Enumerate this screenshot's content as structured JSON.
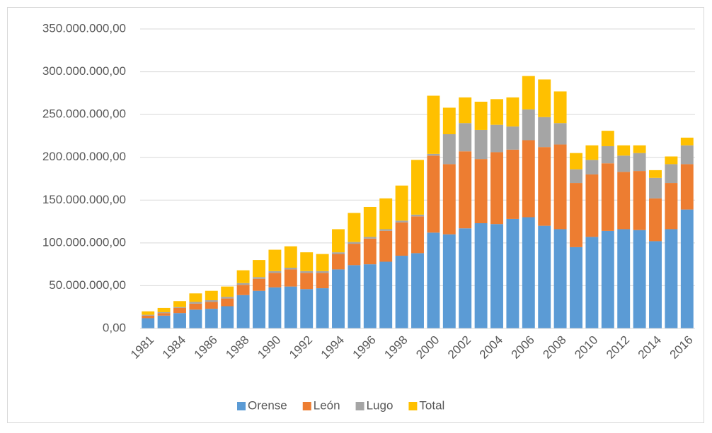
{
  "chart_data": {
    "type": "stacked_bar",
    "categories": [
      "1981",
      null,
      "1984",
      null,
      "1986",
      null,
      "1988",
      null,
      "1990",
      null,
      "1992",
      null,
      "1994",
      null,
      "1996",
      null,
      "1998",
      null,
      "2000",
      null,
      "2002",
      null,
      "2004",
      null,
      "2006",
      null,
      "2008",
      null,
      "2010",
      null,
      "2012",
      null,
      "2014",
      null,
      "2016"
    ],
    "series": [
      {
        "name": "Orense",
        "color": "#5b9bd5",
        "values": [
          12000000,
          15000000,
          18000000,
          22000000,
          23000000,
          26000000,
          39000000,
          44000000,
          48000000,
          49000000,
          46000000,
          47000000,
          69000000,
          74000000,
          75000000,
          78000000,
          85000000,
          88000000,
          112000000,
          110000000,
          117000000,
          123000000,
          122000000,
          128000000,
          130000000,
          120000000,
          116000000,
          95000000,
          107000000,
          114000000,
          116000000,
          115000000,
          102000000,
          116000000,
          139000000
        ]
      },
      {
        "name": "León",
        "color": "#ed7d31",
        "values": [
          3000000,
          3000000,
          6000000,
          7000000,
          8000000,
          9000000,
          12000000,
          14000000,
          17000000,
          20000000,
          19000000,
          18000000,
          18000000,
          25000000,
          30000000,
          36000000,
          39000000,
          43000000,
          90000000,
          82000000,
          90000000,
          75000000,
          84000000,
          81000000,
          90000000,
          92000000,
          99000000,
          75000000,
          73000000,
          79000000,
          67000000,
          69000000,
          50000000,
          54000000,
          53000000
        ]
      },
      {
        "name": "Lugo",
        "color": "#a5a5a5",
        "values": [
          1000000,
          1000000,
          1000000,
          2000000,
          2000000,
          2000000,
          2000000,
          2000000,
          2000000,
          2000000,
          2000000,
          2000000,
          2000000,
          2000000,
          2000000,
          2000000,
          2000000,
          2000000,
          2000000,
          35000000,
          33000000,
          34000000,
          32000000,
          27000000,
          36000000,
          35000000,
          25000000,
          16000000,
          17000000,
          20000000,
          19000000,
          21000000,
          24000000,
          22000000,
          22000000
        ]
      },
      {
        "name": "Total",
        "color": "#ffc000",
        "values": [
          4000000,
          5000000,
          7000000,
          10000000,
          11000000,
          12000000,
          15000000,
          20000000,
          25000000,
          25000000,
          22000000,
          20000000,
          27000000,
          34000000,
          35000000,
          36000000,
          41000000,
          64000000,
          68000000,
          31000000,
          30000000,
          33000000,
          30000000,
          34000000,
          39000000,
          44000000,
          37000000,
          19000000,
          17000000,
          18000000,
          12000000,
          9000000,
          9000000,
          9000000,
          9000000
        ]
      }
    ],
    "ylim": [
      0,
      350000000
    ],
    "yticks": [
      {
        "value": 0,
        "label": "0,00"
      },
      {
        "value": 50000000,
        "label": "50.000.000,00"
      },
      {
        "value": 100000000,
        "label": "100.000.000,00"
      },
      {
        "value": 150000000,
        "label": "150.000.000,00"
      },
      {
        "value": 200000000,
        "label": "200.000.000,00"
      },
      {
        "value": 250000000,
        "label": "250.000.000,00"
      },
      {
        "value": 300000000,
        "label": "300.000.000,00"
      },
      {
        "value": 350000000,
        "label": "350.000.000,00"
      }
    ],
    "grid": true,
    "legend": "bottom"
  }
}
